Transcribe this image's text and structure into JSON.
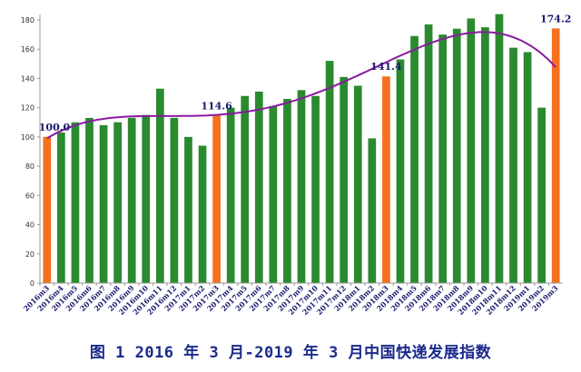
{
  "caption": "图 1 2016 年 3 月-2019 年 3 月中国快递发展指数",
  "colors": {
    "bar": "#2a8a2f",
    "highlight_bar": "#f5711f",
    "trend": "#8a1aa0",
    "axis": "#999999",
    "label": "#1a1a6e"
  },
  "chart_data": {
    "type": "bar",
    "title": "",
    "xlabel": "",
    "ylabel": "",
    "ylim": [
      0,
      180
    ],
    "yticks": [
      0,
      20,
      40,
      60,
      80,
      100,
      120,
      140,
      160,
      180
    ],
    "grid": false,
    "categories": [
      "2016m3",
      "2016m4",
      "2016m5",
      "2016m6",
      "2016m7",
      "2016m8",
      "2016m9",
      "2016m10",
      "2016m11",
      "2016m12",
      "2017m1",
      "2017m2",
      "2017m3",
      "2017m4",
      "2017m5",
      "2017m6",
      "2017m7",
      "2017m8",
      "2017m9",
      "2017m10",
      "2017m11",
      "2017m12",
      "2018m1",
      "2018m2",
      "2018m3",
      "2018m4",
      "2018m5",
      "2018m6",
      "2018m7",
      "2018m8",
      "2018m9",
      "2018m10",
      "2018m11",
      "2018m12",
      "2019m1",
      "2019m2",
      "2019m3"
    ],
    "values": [
      100.0,
      103,
      110,
      113,
      108,
      110,
      113,
      115,
      133,
      113,
      100,
      94,
      114.6,
      120,
      128,
      131,
      121,
      126,
      132,
      128,
      152,
      141,
      135,
      99,
      141.4,
      153,
      169,
      177,
      170,
      174,
      181,
      175,
      184,
      161,
      158,
      120,
      174.2
    ],
    "highlighted_categories": [
      "2016m3",
      "2017m3",
      "2018m3",
      "2019m3"
    ],
    "trend_line": true,
    "data_labels": [
      {
        "category": "2016m3",
        "text": "100.0"
      },
      {
        "category": "2017m3",
        "text": "114.6"
      },
      {
        "category": "2018m3",
        "text": "141.4"
      },
      {
        "category": "2019m3",
        "text": "174.2"
      }
    ]
  }
}
